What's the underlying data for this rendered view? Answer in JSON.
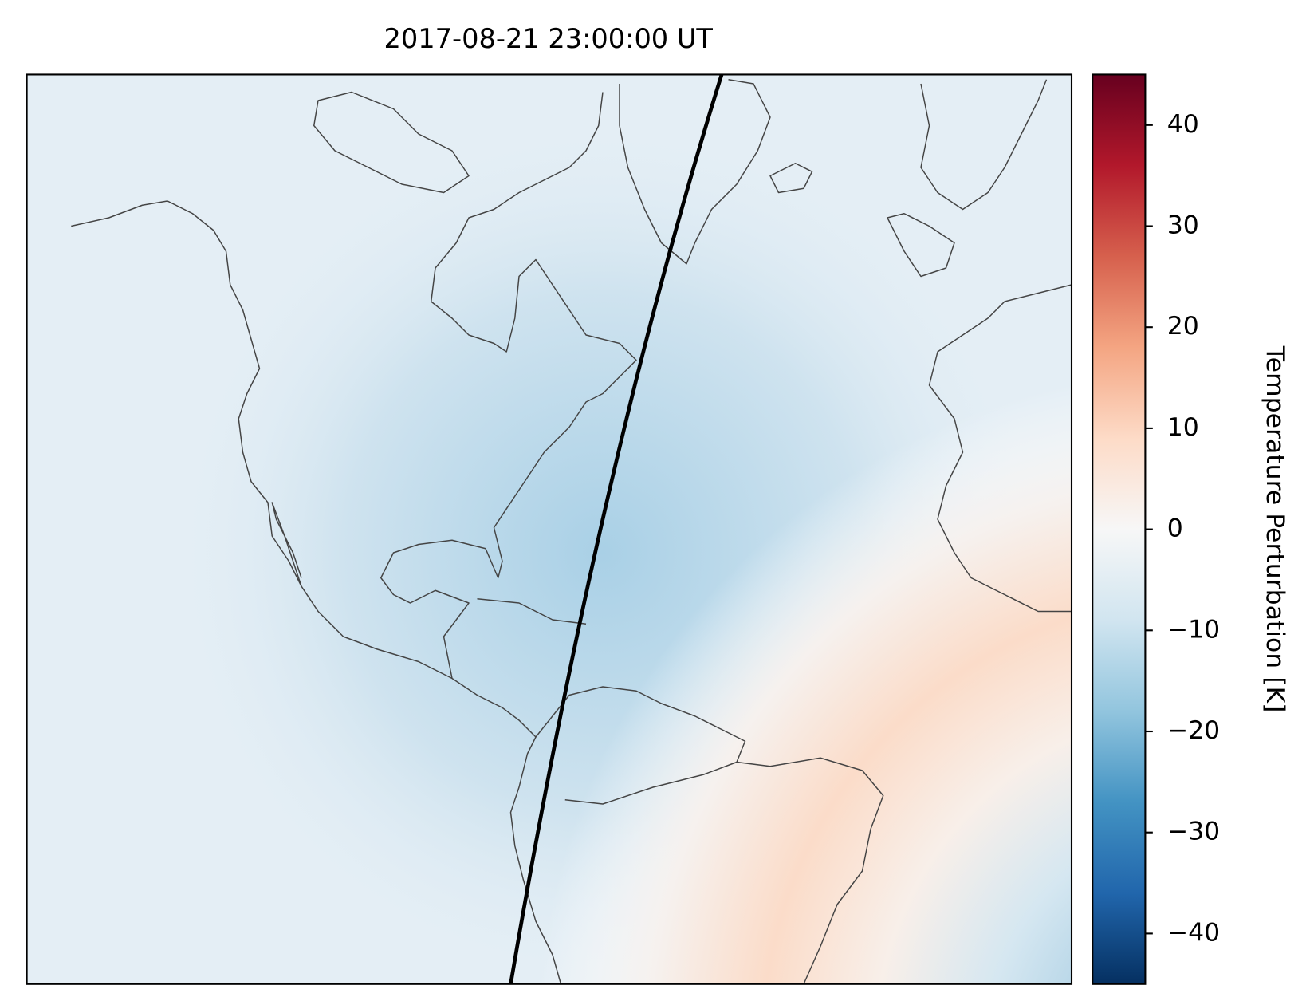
{
  "chart_data": {
    "type": "map",
    "title": "2017-08-21 23:00:00 UT",
    "colorbar": {
      "label": "Temperature Perturbation [K]",
      "lim": [
        -45,
        45
      ],
      "ticks": [
        {
          "value": -40,
          "label": "−40"
        },
        {
          "value": -30,
          "label": "−30"
        },
        {
          "value": -20,
          "label": "−20"
        },
        {
          "value": -10,
          "label": "−10"
        },
        0,
        10,
        20,
        30,
        40
      ],
      "colormap": [
        "#053061",
        "#2166ac",
        "#4393c3",
        "#92c5de",
        "#d1e5f0",
        "#f7f7f7",
        "#fddbc7",
        "#f4a582",
        "#d6604d",
        "#b2182b",
        "#67001f"
      ]
    }
  }
}
